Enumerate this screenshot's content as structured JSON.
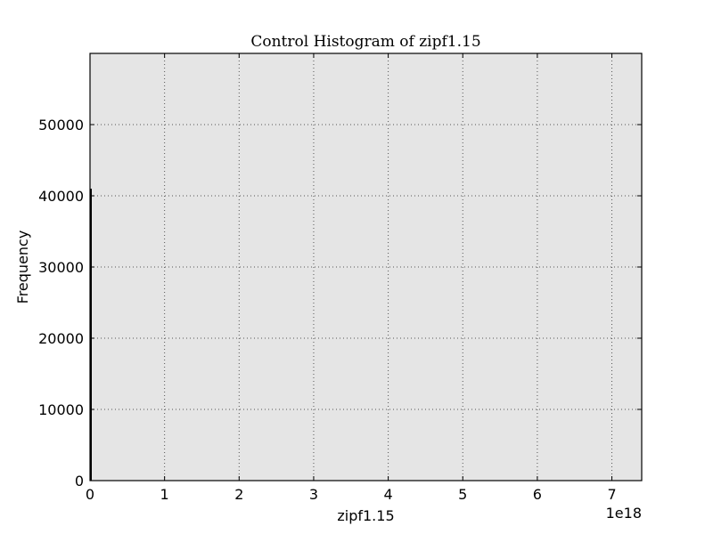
{
  "chart_data": {
    "type": "bar",
    "title": "Control Histogram of zipf1.15",
    "xlabel": "zipf1.15",
    "ylabel": "Frequency",
    "x_offset_text": "1e18",
    "xlim": [
      0,
      7.4
    ],
    "ylim": [
      0,
      60000
    ],
    "x_scale_exponent": 18,
    "xticks": [
      0,
      1,
      2,
      3,
      4,
      5,
      6,
      7
    ],
    "xtick_labels": [
      "0",
      "1",
      "2",
      "3",
      "4",
      "5",
      "6",
      "7"
    ],
    "yticks": [
      0,
      10000,
      20000,
      30000,
      40000,
      50000
    ],
    "ytick_labels": [
      "0",
      "10000",
      "20000",
      "30000",
      "40000",
      "50000"
    ],
    "grid": true,
    "background_color": "#e5e5e5",
    "bar_color": "#000000",
    "bins": [
      {
        "x_start": 0.0,
        "x_end": 0.01,
        "count": 41000
      }
    ]
  }
}
